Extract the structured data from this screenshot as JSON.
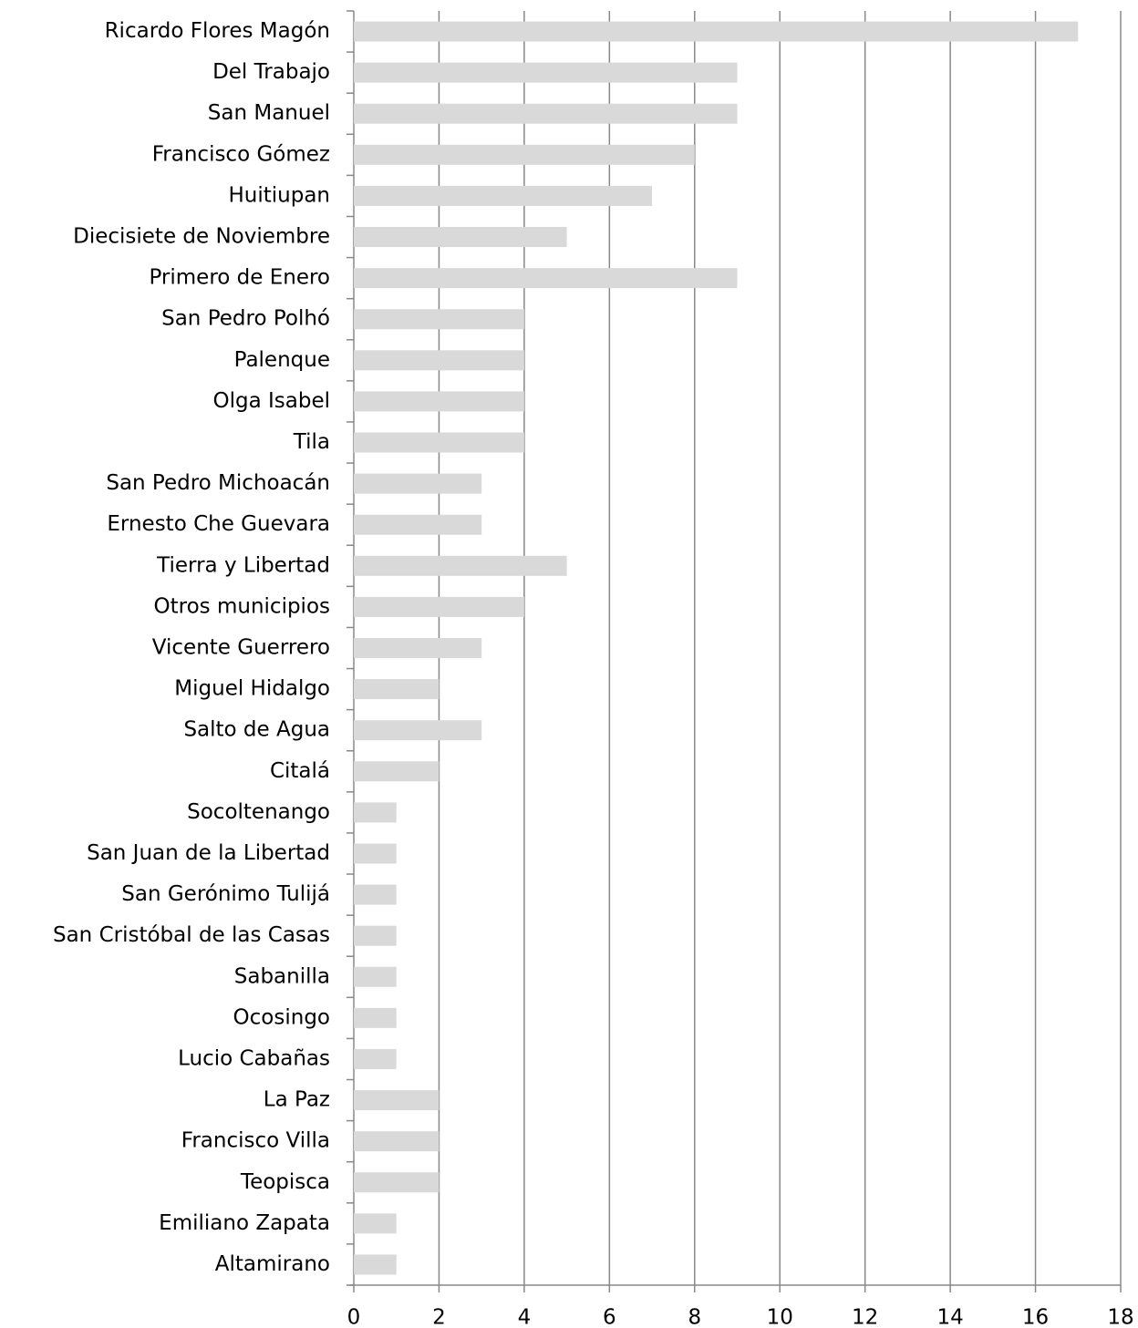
{
  "chart_data": {
    "type": "barh",
    "categories": [
      "Ricardo Flores Magón",
      "Del Trabajo ",
      "San Manuel",
      "Francisco Gómez",
      "Huitiupan",
      "Diecisiete de Noviembre",
      "Primero de Enero",
      "San Pedro Polhó",
      "Palenque",
      "Olga Isabel",
      "Tila",
      "San Pedro Michoacán",
      "Ernesto Che Guevara",
      "Tierra y Libertad",
      "Otros municipios",
      "Vicente Guerrero",
      "Miguel Hidalgo",
      "Salto de Agua",
      "Citalá",
      "Socoltenango",
      "San Juan de la Libertad",
      "San Gerónimo Tulijá",
      "San Cristóbal de las Casas",
      "Sabanilla",
      "Ocosingo",
      "Lucio Cabañas",
      "La Paz",
      "Francisco Villa",
      "Teopisca",
      "Emiliano Zapata",
      "Altamirano"
    ],
    "values": [
      17,
      9,
      9,
      8,
      7,
      5,
      9,
      4,
      4,
      4,
      4,
      3,
      3,
      5,
      4,
      3,
      2,
      3,
      2,
      1,
      1,
      1,
      1,
      1,
      1,
      1,
      2,
      2,
      2,
      1,
      1
    ],
    "color": "#d9d9d9",
    "xlim": [
      0,
      18
    ],
    "xticks": [
      0,
      2,
      4,
      6,
      8,
      10,
      12,
      14,
      16,
      18
    ],
    "grid": true
  }
}
